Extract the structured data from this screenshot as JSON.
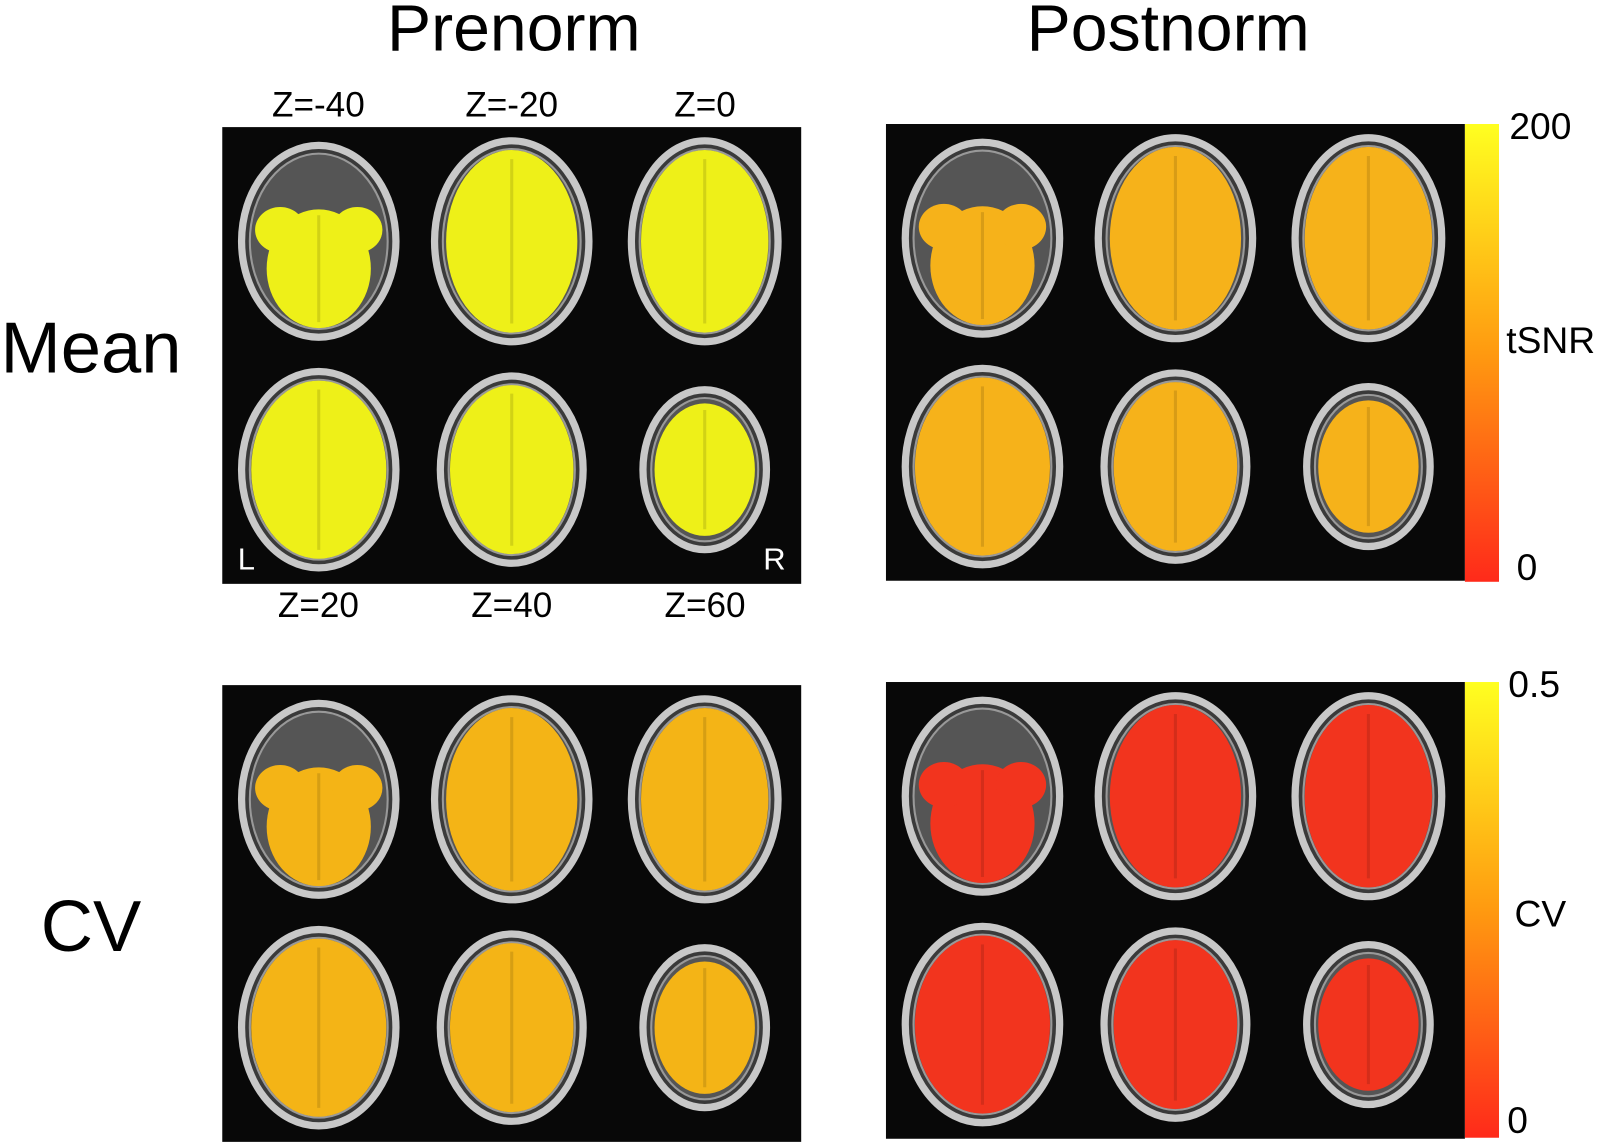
{
  "columns": [
    "Prenorm",
    "Postnorm"
  ],
  "rows": [
    "Mean",
    "CV"
  ],
  "slices": {
    "top": [
      "Z=-40",
      "Z=-20",
      "Z=0"
    ],
    "bottom": [
      "Z=20",
      "Z=40",
      "Z=60"
    ]
  },
  "orientation": {
    "left": "L",
    "right": "R"
  },
  "colorbars": [
    {
      "label": "tSNR",
      "max": "200",
      "min": "0"
    },
    {
      "label": "CV",
      "max": "0.5",
      "min": "0"
    }
  ]
}
